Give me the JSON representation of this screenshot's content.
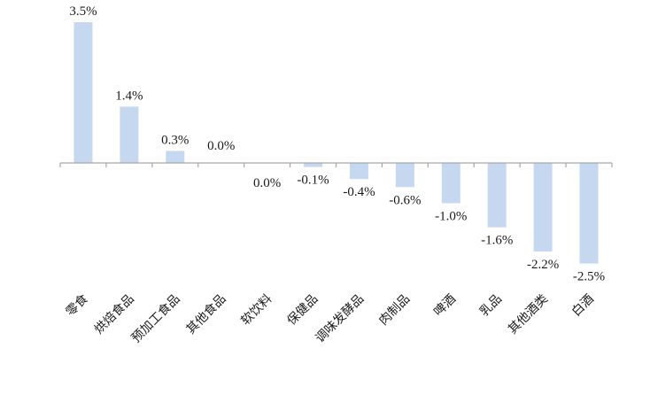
{
  "chart_data": {
    "type": "bar",
    "title": "",
    "xlabel": "",
    "ylabel": "",
    "categories": [
      "零食",
      "烘焙食品",
      "预加工食品",
      "其他食品",
      "软饮料",
      "保健品",
      "调味发酵品",
      "肉制品",
      "啤酒",
      "乳品",
      "其他酒类",
      "白酒"
    ],
    "values": [
      3.5,
      1.4,
      0.3,
      0.0,
      0.0,
      -0.1,
      -0.4,
      -0.6,
      -1.0,
      -1.6,
      -2.2,
      -2.5
    ],
    "data_labels": [
      "3.5%",
      "1.4%",
      "0.3%",
      "0.0%",
      "0.0%",
      "-0.1%",
      "-0.4%",
      "-0.6%",
      "-1.0%",
      "-1.6%",
      "-2.2%",
      "-2.5%"
    ],
    "unit": "%",
    "ylim": [
      -2.5,
      3.5
    ],
    "grid": false,
    "legend": "none",
    "bar_color": "#c6d8f0",
    "axis_color": "#a6a6a6"
  }
}
